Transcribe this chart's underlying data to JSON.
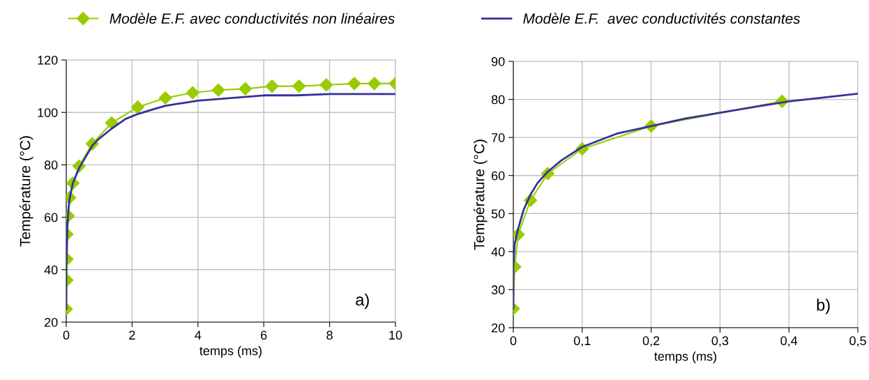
{
  "chart_data": [
    {
      "type": "line",
      "xlabel": "temps (ms)",
      "ylabel": "Température (°C)",
      "xlim": [
        0,
        10
      ],
      "ylim": [
        20,
        120
      ],
      "xticks": [
        0,
        2,
        4,
        6,
        8,
        10
      ],
      "yticks": [
        20,
        40,
        60,
        80,
        100,
        120
      ],
      "grid": true,
      "legend": "top",
      "annotations": [
        "a)"
      ],
      "series": [
        {
          "name": "Modèle E.F. avec conductivités non linéaires",
          "color": "#99cc00",
          "marker": "diamond",
          "x": [
            0,
            0.02,
            0.02,
            0.02,
            0.06,
            0.1,
            0.2,
            0.39,
            0.79,
            1.38,
            2.17,
            3.01,
            3.84,
            4.62,
            5.44,
            6.25,
            7.07,
            7.9,
            8.75,
            9.36,
            10
          ],
          "values": [
            25,
            36,
            44,
            53.5,
            60.5,
            67.5,
            73,
            79.5,
            88,
            96,
            102,
            105.5,
            107.5,
            108.5,
            109,
            110,
            110,
            110.5,
            111,
            111,
            111
          ]
        },
        {
          "name": "Modèle E.F.  avec conductivités constantes",
          "color": "#333399",
          "marker": "none",
          "x": [
            0,
            0,
            0.02,
            0.03,
            0.06,
            0.1,
            0.2,
            0.4,
            0.8,
            1.0,
            1.4,
            1.8,
            2.2,
            2.6,
            3.0,
            3.5,
            4,
            5,
            6,
            7,
            8,
            9,
            10
          ],
          "values": [
            25,
            40,
            48,
            55,
            62,
            67,
            73,
            79,
            87.5,
            90,
            94,
            97.5,
            99.5,
            101,
            102.5,
            103.5,
            104.5,
            105.5,
            106.5,
            106.5,
            107,
            107,
            107
          ]
        }
      ]
    },
    {
      "type": "line",
      "xlabel": "temps (ms)",
      "ylabel": "Température (°C)",
      "xlim": [
        0,
        0.5
      ],
      "ylim": [
        20,
        90
      ],
      "xticks": [
        0,
        {
          "value": 0.1,
          "label": "0,1"
        },
        {
          "value": 0.2,
          "label": "0,2"
        },
        {
          "value": 0.3,
          "label": "0,3"
        },
        {
          "value": 0.4,
          "label": "0,4"
        },
        {
          "value": 0.5,
          "label": "0,5"
        }
      ],
      "yticks": [
        20,
        30,
        40,
        50,
        60,
        70,
        80,
        90
      ],
      "grid": true,
      "annotations": [
        "b)"
      ],
      "series": [
        {
          "color": "#99cc00",
          "marker": "diamond",
          "x": [
            0,
            0.002,
            0.007,
            0.025,
            0.05,
            0.1,
            0.2,
            0.39
          ],
          "values": [
            25,
            36,
            44.5,
            53.5,
            60.5,
            67,
            73,
            79.5
          ]
        },
        {
          "color": "#333399",
          "marker": "none",
          "x": [
            0,
            0,
            0.002,
            0.007,
            0.015,
            0.025,
            0.035,
            0.05,
            0.07,
            0.1,
            0.15,
            0.2,
            0.25,
            0.3,
            0.35,
            0.4,
            0.45,
            0.5
          ],
          "values": [
            25,
            36,
            42,
            46,
            51,
            55,
            58,
            61,
            64,
            67.5,
            71,
            73,
            75,
            76.5,
            78,
            79.5,
            80.5,
            81.5
          ]
        }
      ]
    }
  ]
}
